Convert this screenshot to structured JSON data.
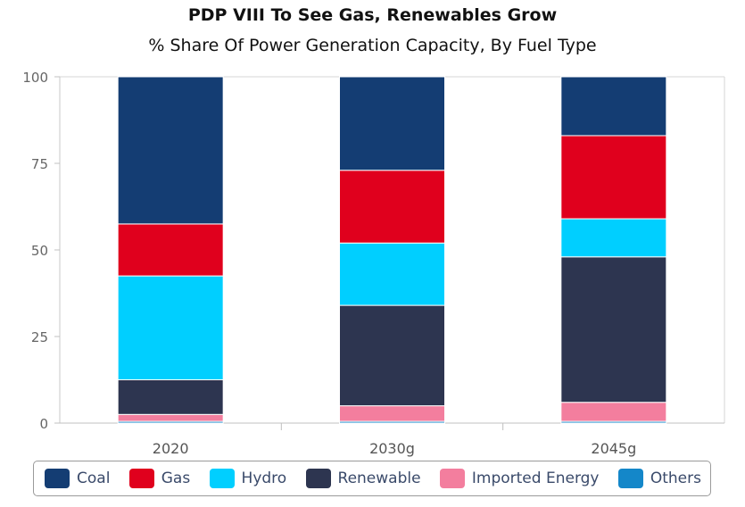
{
  "chart_data": {
    "type": "bar",
    "stacked": true,
    "title": "PDP VIII To See Gas, Renewables Grow",
    "subtitle": "% Share Of Power Generation Capacity, By Fuel Type",
    "categories": [
      "2020",
      "2030g",
      "2045g"
    ],
    "yticks": [
      "0",
      "25",
      "50",
      "75",
      "100"
    ],
    "ylim": [
      0,
      100
    ],
    "legend_position": "bottom",
    "series": [
      {
        "name": "Others",
        "color": "#1487c9",
        "values": [
          0.5,
          0.5,
          0.5
        ]
      },
      {
        "name": "Imported Energy",
        "color": "#f37e9e",
        "values": [
          2,
          4.5,
          5.5
        ]
      },
      {
        "name": "Renewable",
        "color": "#2d3550",
        "values": [
          10,
          29,
          42
        ]
      },
      {
        "name": "Hydro",
        "color": "#00cfff",
        "values": [
          30,
          18,
          11
        ]
      },
      {
        "name": "Gas",
        "color": "#e0001d",
        "values": [
          15,
          21,
          24
        ]
      },
      {
        "name": "Coal",
        "color": "#143d73",
        "values": [
          42.5,
          27,
          17
        ]
      }
    ],
    "legend_order": [
      "Coal",
      "Gas",
      "Hydro",
      "Renewable",
      "Imported Energy",
      "Others"
    ]
  }
}
